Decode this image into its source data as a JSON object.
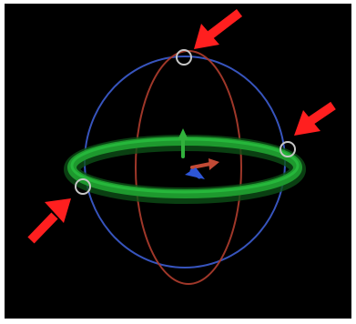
{
  "viewport": {
    "background_color": "#000000"
  },
  "gizmo": {
    "type": "rotation-gizmo",
    "colors": {
      "x_axis_ring": "#a83a2b",
      "y_axis_ring": "#1f9b2f",
      "z_axis_ring": "#3a58c7",
      "outer_sphere": "#5a6ee0",
      "handle_circle": "#c7c7c7",
      "x_arrow": "#c24a35",
      "y_arrow": "#31b13c",
      "z_arrow": "#2e56d8"
    },
    "handles": [
      {
        "name": "top-handle"
      },
      {
        "name": "right-handle"
      },
      {
        "name": "left-handle"
      }
    ]
  },
  "annotations": {
    "arrow_color": "#ff1f1f",
    "callouts": [
      {
        "name": "callout-top"
      },
      {
        "name": "callout-right"
      },
      {
        "name": "callout-left"
      }
    ]
  }
}
